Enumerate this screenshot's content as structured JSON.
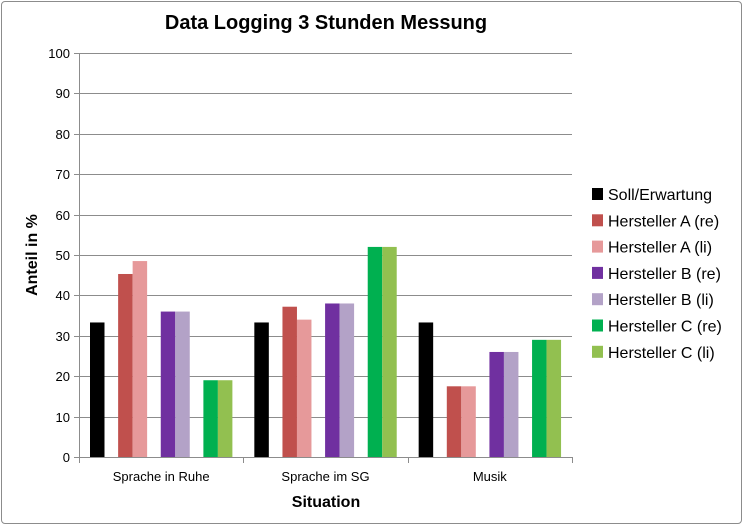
{
  "chart_data": {
    "type": "bar",
    "title": "Data Logging 3 Stunden Messung",
    "xlabel": "Situation",
    "ylabel": "Anteil in %",
    "ylim": [
      0,
      100
    ],
    "yticks": [
      0,
      10,
      20,
      30,
      40,
      50,
      60,
      70,
      80,
      90,
      100
    ],
    "grid": true,
    "legend_position": "right",
    "categories": [
      "Sprache in Ruhe",
      "Sprache im SG",
      "Musik"
    ],
    "series": [
      {
        "name": "Soll/Erwartung",
        "color": "#000000",
        "values": [
          33.3,
          33.3,
          33.3
        ]
      },
      {
        "name": "Hersteller A (re)",
        "color": "#c0504d",
        "values": [
          45.3,
          37.2,
          17.5
        ]
      },
      {
        "name": "Hersteller A (li)",
        "color": "#e6999a",
        "values": [
          48.5,
          34.0,
          17.5
        ]
      },
      {
        "name": "Hersteller B (re)",
        "color": "#7030a0",
        "values": [
          36.0,
          38.0,
          26.0
        ]
      },
      {
        "name": "Hersteller B (li)",
        "color": "#b3a2c7",
        "values": [
          36.0,
          38.0,
          26.0
        ]
      },
      {
        "name": "Hersteller C (re)",
        "color": "#00b050",
        "values": [
          19.0,
          52.0,
          29.0
        ]
      },
      {
        "name": "Hersteller C (li)",
        "color": "#92c050",
        "values": [
          19.0,
          52.0,
          29.0
        ]
      }
    ]
  }
}
